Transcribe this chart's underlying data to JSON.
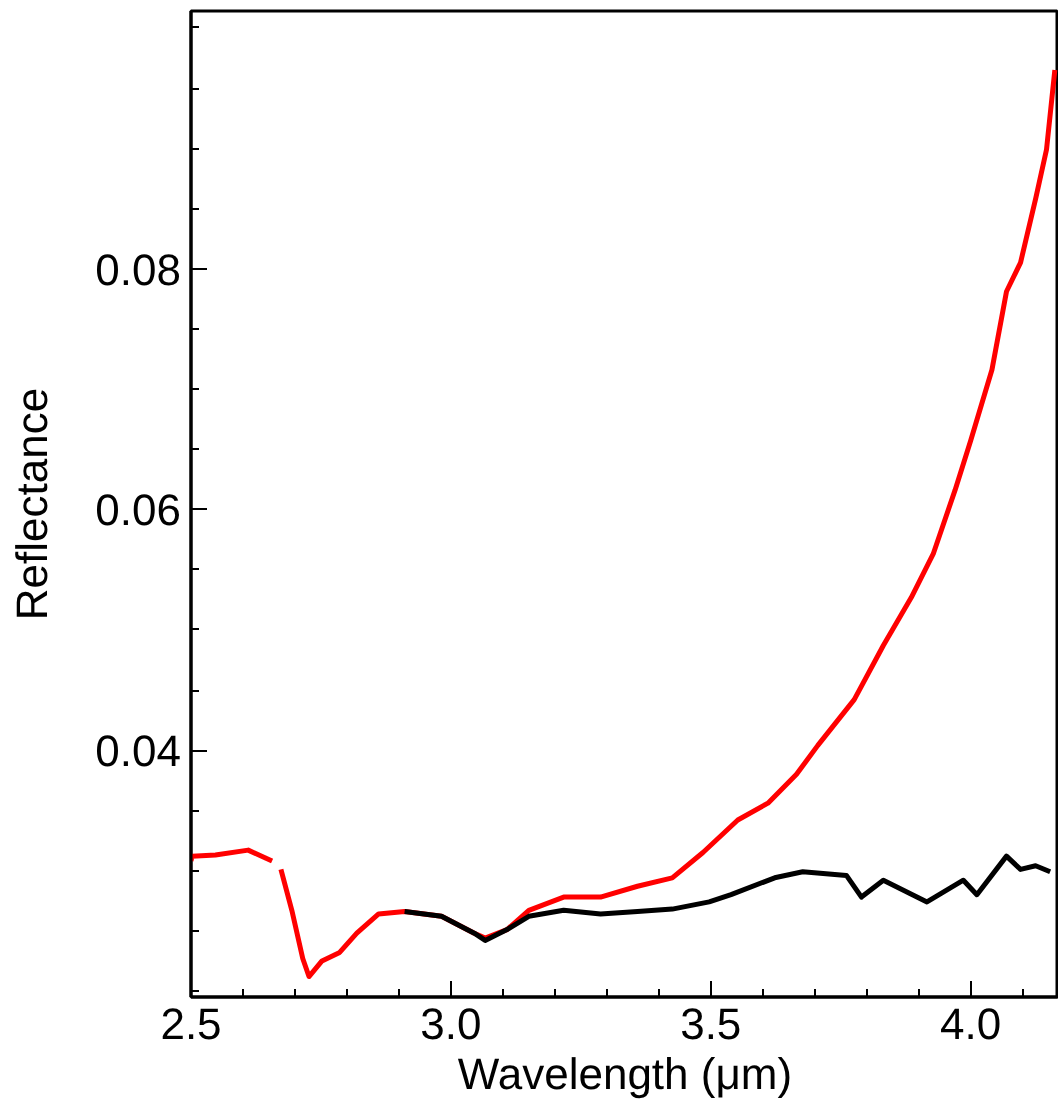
{
  "chart_data": {
    "type": "line",
    "xlabel": "Wavelength (μm)",
    "ylabel": "Reflectance",
    "xlim": [
      2.5,
      4.17
    ],
    "ylim": [
      0.0195,
      0.1014
    ],
    "xticks": [
      2.5,
      {
        "value": 3.0,
        "label": "3.0"
      },
      3.5,
      {
        "value": 4.0,
        "label": "4.0"
      }
    ],
    "yticks": [
      0.04,
      0.06,
      0.08
    ],
    "grid": false,
    "marker": "none",
    "line_style": "solid",
    "series": [
      {
        "color": "#ff0000",
        "x": [
          2.5,
          2.502,
          2.547,
          2.61,
          2.656,
          2.664,
          2.673,
          2.694,
          2.715,
          2.727,
          2.752,
          2.786,
          2.819,
          2.861,
          2.911,
          2.982,
          3.045,
          3.066,
          3.108,
          3.15,
          3.217,
          3.288,
          3.359,
          3.426,
          3.485,
          3.552,
          3.61,
          3.665,
          3.706,
          3.776,
          3.832,
          3.886,
          3.928,
          3.97,
          4.0,
          4.041,
          4.069,
          4.096,
          4.125,
          4.146,
          4.162
        ],
        "values": [
          0.0308,
          0.0312,
          0.0313,
          0.0317,
          0.0308,
          null,
          0.0301,
          0.0267,
          0.0227,
          0.0212,
          0.0225,
          0.0232,
          0.0248,
          0.0264,
          0.0266,
          0.0262,
          0.0248,
          0.0244,
          0.0251,
          0.0267,
          0.0278,
          0.0278,
          0.0287,
          0.0294,
          0.0315,
          0.0342,
          0.0356,
          0.038,
          0.0404,
          0.0442,
          0.0487,
          0.0527,
          0.0563,
          0.0616,
          0.0657,
          0.0716,
          0.0781,
          0.0805,
          0.0858,
          0.0899,
          0.0965
        ]
      },
      {
        "color": "#000000",
        "x": [
          2.911,
          2.982,
          3.045,
          3.066,
          3.108,
          3.15,
          3.217,
          3.288,
          3.359,
          3.426,
          3.497,
          3.539,
          3.623,
          3.677,
          3.761,
          3.79,
          3.832,
          3.916,
          3.986,
          4.012,
          4.069,
          4.096,
          4.125,
          4.153
        ],
        "values": [
          0.0266,
          0.0262,
          0.0248,
          0.0242,
          0.0251,
          0.0262,
          0.0267,
          0.0264,
          0.0266,
          0.0268,
          0.0274,
          0.028,
          0.0294,
          0.0299,
          0.0296,
          0.0278,
          0.0292,
          0.0274,
          0.0292,
          0.028,
          0.0312,
          0.0301,
          0.0304,
          0.0299
        ]
      }
    ]
  }
}
